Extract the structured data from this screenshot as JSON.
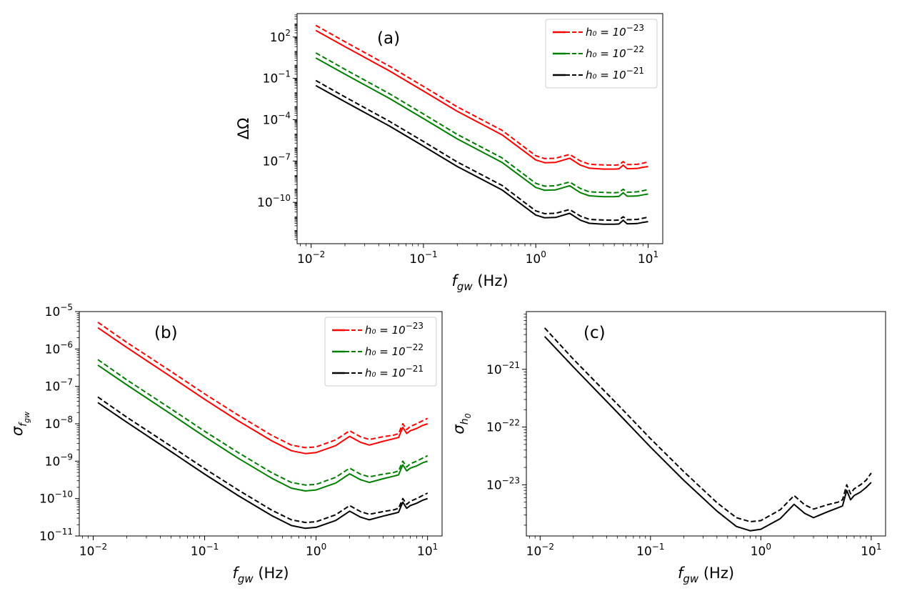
{
  "figure": {
    "label": "Figure with three log-log panels"
  },
  "chart_data": [
    {
      "type": "line",
      "panel": "(a)",
      "title": "",
      "xlabel": "f_gw (Hz)",
      "ylabel": "ΔΩ",
      "xscale": "log",
      "yscale": "log",
      "xlim": [
        0.0075,
        13.5
      ],
      "ylim": [
        1e-13,
        5000.0
      ],
      "x_ticks": [
        {
          "value": 0.01,
          "base": "10",
          "exp": "−2"
        },
        {
          "value": 0.1,
          "base": "10",
          "exp": "−1"
        },
        {
          "value": 1,
          "base": "10",
          "exp": "0"
        },
        {
          "value": 10,
          "base": "10",
          "exp": "1"
        }
      ],
      "y_ticks": [
        {
          "value": 100.0,
          "base": "10",
          "exp": "2"
        },
        {
          "value": 0.1,
          "base": "10",
          "exp": "−1"
        },
        {
          "value": 0.0001,
          "base": "10",
          "exp": "−4"
        },
        {
          "value": 1e-07,
          "base": "10",
          "exp": "−7"
        },
        {
          "value": 1e-10,
          "base": "10",
          "exp": "−10"
        }
      ],
      "x": [
        0.011,
        0.02,
        0.05,
        0.1,
        0.2,
        0.5,
        1.0,
        1.2,
        1.5,
        2.0,
        2.5,
        3.0,
        4.0,
        5.0,
        5.5,
        6.0,
        6.5,
        7.0,
        8.0,
        9.0,
        10.0
      ],
      "series": [
        {
          "name": "h0=1e-23 solid",
          "color": "#ff0000",
          "dash": "solid",
          "values": [
            300.0,
            20.0,
            0.34,
            0.012,
            0.0004,
            8e-06,
            1.2e-07,
            7.5e-08,
            8e-08,
            1.6e-07,
            5e-08,
            3e-08,
            2.6e-08,
            2.6e-08,
            2.7e-08,
            5e-08,
            2.8e-08,
            2.8e-08,
            2.9e-08,
            3.5e-08,
            4e-08
          ]
        },
        {
          "name": "h0=1e-23 dashed",
          "color": "#ff0000",
          "dash": "dashed",
          "values": [
            700.0,
            45.0,
            0.75,
            0.026,
            0.00085,
            1.7e-05,
            2.4e-07,
            1.5e-07,
            1.6e-07,
            3e-07,
            1e-07,
            5.8e-08,
            5.2e-08,
            5e-08,
            5.3e-08,
            9e-08,
            5.5e-08,
            5.5e-08,
            5.8e-08,
            7e-08,
            8.5e-08
          ]
        },
        {
          "name": "h0=1e-22 solid",
          "color": "#008000",
          "dash": "solid",
          "values": [
            3.0,
            0.2,
            0.0034,
            0.00012,
            4e-06,
            8e-08,
            1.2e-09,
            7.5e-10,
            8e-10,
            1.6e-09,
            5e-10,
            3e-10,
            2.6e-10,
            2.6e-10,
            2.7e-10,
            5e-10,
            2.8e-10,
            2.8e-10,
            2.9e-10,
            3.5e-10,
            4e-10
          ]
        },
        {
          "name": "h0=1e-22 dashed",
          "color": "#008000",
          "dash": "dashed",
          "values": [
            7.0,
            0.45,
            0.0075,
            0.00026,
            8.5e-06,
            1.7e-07,
            2.4e-09,
            1.5e-09,
            1.6e-09,
            3e-09,
            1e-09,
            5.8e-10,
            5.2e-10,
            5e-10,
            5.3e-10,
            9e-10,
            5.5e-10,
            5.5e-10,
            5.8e-10,
            7e-10,
            8.5e-10
          ]
        },
        {
          "name": "h0=1e-21 solid",
          "color": "#000000",
          "dash": "solid",
          "values": [
            0.03,
            0.002,
            3.4e-05,
            1.2e-06,
            4e-08,
            8e-10,
            1.2e-11,
            7.5e-12,
            8e-12,
            1.6e-11,
            5e-12,
            3e-12,
            2.6e-12,
            2.6e-12,
            2.7e-12,
            5e-12,
            2.8e-12,
            2.8e-12,
            2.9e-12,
            3.5e-12,
            4e-12
          ]
        },
        {
          "name": "h0=1e-21 dashed",
          "color": "#000000",
          "dash": "dashed",
          "values": [
            0.07,
            0.0045,
            7.5e-05,
            2.6e-06,
            8.5e-08,
            1.7e-09,
            2.4e-11,
            1.5e-11,
            1.6e-11,
            3e-11,
            1e-11,
            5.8e-12,
            5.2e-12,
            5e-12,
            5.3e-12,
            9e-12,
            5.5e-12,
            5.5e-12,
            5.8e-12,
            7e-12,
            8.5e-12
          ]
        }
      ],
      "legend": {
        "placement": "top-right",
        "entries": [
          {
            "text": "h₀ = 10",
            "exp": "−23",
            "color": "#ff0000"
          },
          {
            "text": "h₀ = 10",
            "exp": "−22",
            "color": "#008000"
          },
          {
            "text": "h₀ = 10",
            "exp": "−21",
            "color": "#000000"
          }
        ]
      }
    },
    {
      "type": "line",
      "panel": "(b)",
      "title": "",
      "xlabel": "f_gw (Hz)",
      "ylabel": "σ_fgw",
      "xscale": "log",
      "yscale": "log",
      "xlim": [
        0.0075,
        13.5
      ],
      "ylim": [
        1e-11,
        1e-05
      ],
      "x_ticks": [
        {
          "value": 0.01,
          "base": "10",
          "exp": "−2"
        },
        {
          "value": 0.1,
          "base": "10",
          "exp": "−1"
        },
        {
          "value": 1,
          "base": "10",
          "exp": "0"
        },
        {
          "value": 10,
          "base": "10",
          "exp": "1"
        }
      ],
      "y_ticks": [
        {
          "value": 1e-05,
          "base": "10",
          "exp": "−5"
        },
        {
          "value": 1e-06,
          "base": "10",
          "exp": "−6"
        },
        {
          "value": 1e-07,
          "base": "10",
          "exp": "−7"
        },
        {
          "value": 1e-08,
          "base": "10",
          "exp": "−8"
        },
        {
          "value": 1e-09,
          "base": "10",
          "exp": "−9"
        },
        {
          "value": 1e-10,
          "base": "10",
          "exp": "−10"
        },
        {
          "value": 1e-11,
          "base": "10",
          "exp": "−11"
        }
      ],
      "x": [
        0.011,
        0.02,
        0.05,
        0.1,
        0.2,
        0.4,
        0.6,
        0.8,
        1.0,
        1.5,
        2.0,
        2.5,
        3.0,
        4.0,
        5.0,
        5.5,
        6.0,
        6.5,
        7.0,
        8.0,
        9.0,
        10.0
      ],
      "series": [
        {
          "name": "h0=1e-23 solid",
          "color": "#ff0000",
          "dash": "solid",
          "values": [
            3.7e-06,
            1.1e-06,
            1.8e-07,
            4.5e-08,
            1.2e-08,
            3.5e-09,
            1.9e-09,
            1.6e-09,
            1.7e-09,
            2.6e-09,
            4.6e-09,
            3.2e-09,
            2.7e-09,
            3.4e-09,
            4e-09,
            4.3e-09,
            8e-09,
            5.5e-09,
            6.5e-09,
            7.5e-09,
            9e-09,
            1e-08
          ]
        },
        {
          "name": "h0=1e-23 dashed",
          "color": "#ff0000",
          "dash": "dashed",
          "values": [
            5.2e-06,
            1.5e-06,
            2.5e-07,
            6.3e-08,
            1.7e-08,
            4.9e-09,
            2.7e-09,
            2.3e-09,
            2.4e-09,
            3.7e-09,
            6.5e-09,
            4.5e-09,
            3.8e-09,
            4.5e-09,
            5e-09,
            5.5e-09,
            1e-08,
            7e-09,
            8.5e-09,
            1e-08,
            1.2e-08,
            1.4e-08
          ]
        },
        {
          "name": "h0=1e-22 solid",
          "color": "#008000",
          "dash": "solid",
          "values": [
            3.7e-07,
            1.1e-07,
            1.8e-08,
            4.5e-09,
            1.2e-09,
            3.5e-10,
            1.9e-10,
            1.6e-10,
            1.7e-10,
            2.6e-10,
            4.6e-10,
            3.2e-10,
            2.7e-10,
            3.4e-10,
            4e-10,
            4.3e-10,
            8e-10,
            5.5e-10,
            6.5e-10,
            7.5e-10,
            9e-10,
            1e-09
          ]
        },
        {
          "name": "h0=1e-22 dashed",
          "color": "#008000",
          "dash": "dashed",
          "values": [
            5.2e-07,
            1.5e-07,
            2.5e-08,
            6.3e-09,
            1.7e-09,
            4.9e-10,
            2.7e-10,
            2.3e-10,
            2.4e-10,
            3.7e-10,
            6.5e-10,
            4.5e-10,
            3.8e-10,
            4.5e-10,
            5e-10,
            5.5e-10,
            1e-09,
            7e-10,
            8.5e-10,
            1e-09,
            1.2e-09,
            1.4e-09
          ]
        },
        {
          "name": "h0=1e-21 solid",
          "color": "#000000",
          "dash": "solid",
          "values": [
            3.7e-08,
            1.1e-08,
            1.8e-09,
            4.5e-10,
            1.2e-10,
            3.5e-11,
            1.9e-11,
            1.6e-11,
            1.7e-11,
            2.6e-11,
            4.6e-11,
            3.2e-11,
            2.7e-11,
            3.4e-11,
            4e-11,
            4.3e-11,
            8e-11,
            5.5e-11,
            6.5e-11,
            7.5e-11,
            9e-11,
            1e-10
          ]
        },
        {
          "name": "h0=1e-21 dashed",
          "color": "#000000",
          "dash": "dashed",
          "values": [
            5.2e-08,
            1.5e-08,
            2.5e-09,
            6.3e-10,
            1.7e-10,
            4.9e-11,
            2.7e-11,
            2.3e-11,
            2.4e-11,
            3.7e-11,
            6.5e-11,
            4.5e-11,
            3.8e-11,
            4.5e-11,
            5e-11,
            5.5e-11,
            1e-10,
            7e-11,
            8.5e-11,
            1e-10,
            1.2e-10,
            1.4e-10
          ]
        }
      ],
      "legend": {
        "placement": "top-right",
        "entries": [
          {
            "text": "h₀ = 10",
            "exp": "−23",
            "color": "#ff0000"
          },
          {
            "text": "h₀ = 10",
            "exp": "−22",
            "color": "#008000"
          },
          {
            "text": "h₀ = 10",
            "exp": "−21",
            "color": "#000000"
          }
        ]
      }
    },
    {
      "type": "line",
      "panel": "(c)",
      "title": "",
      "xlabel": "f_gw (Hz)",
      "ylabel": "σ_h0",
      "xscale": "log",
      "yscale": "log",
      "xlim": [
        0.0075,
        13.5
      ],
      "ylim": [
        1.3e-24,
        1e-20
      ],
      "x_ticks": [
        {
          "value": 0.01,
          "base": "10",
          "exp": "−2"
        },
        {
          "value": 0.1,
          "base": "10",
          "exp": "−1"
        },
        {
          "value": 1,
          "base": "10",
          "exp": "0"
        },
        {
          "value": 10,
          "base": "10",
          "exp": "1"
        }
      ],
      "y_ticks": [
        {
          "value": 1e-21,
          "base": "10",
          "exp": "−21"
        },
        {
          "value": 1e-22,
          "base": "10",
          "exp": "−22"
        },
        {
          "value": 1e-23,
          "base": "10",
          "exp": "−23"
        }
      ],
      "x": [
        0.011,
        0.02,
        0.05,
        0.1,
        0.2,
        0.4,
        0.6,
        0.8,
        1.0,
        1.5,
        2.0,
        2.5,
        3.0,
        4.0,
        5.0,
        5.5,
        6.0,
        6.5,
        7.0,
        8.0,
        9.0,
        10.0
      ],
      "series": [
        {
          "name": "solid",
          "color": "#000000",
          "dash": "solid",
          "values": [
            3.7e-21,
            1.1e-21,
            1.8e-22,
            4.5e-23,
            1.2e-23,
            3.5e-24,
            1.9e-24,
            1.6e-24,
            1.7e-24,
            2.6e-24,
            4.6e-24,
            3.2e-24,
            2.7e-24,
            3.4e-24,
            4e-24,
            4.3e-24,
            8e-24,
            5.5e-24,
            6.5e-24,
            7.5e-24,
            9e-24,
            1.1e-23
          ]
        },
        {
          "name": "dashed",
          "color": "#000000",
          "dash": "dashed",
          "values": [
            5.2e-21,
            1.5e-21,
            2.5e-22,
            6.3e-23,
            1.7e-23,
            4.9e-24,
            2.7e-24,
            2.3e-24,
            2.4e-24,
            3.7e-24,
            6.5e-24,
            4.5e-24,
            3.8e-24,
            4.5e-24,
            5e-24,
            5.5e-24,
            1e-23,
            7e-24,
            8.5e-24,
            1e-23,
            1.2e-23,
            1.6e-23
          ]
        }
      ],
      "legend": null
    }
  ]
}
